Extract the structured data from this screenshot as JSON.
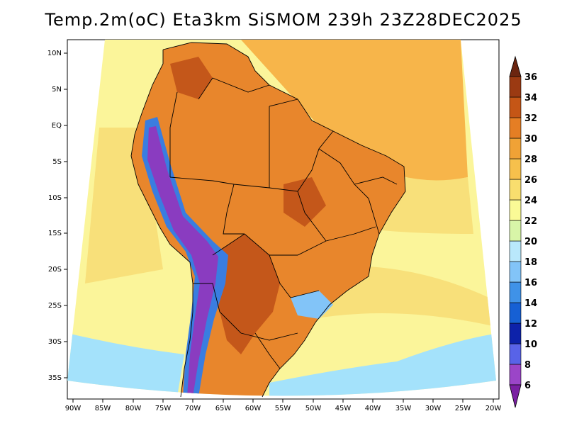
{
  "title": "Temp.2m(oC) Eta3km SiSMOM 239h 23Z28DEC2025",
  "latitude_labels": [
    "10N",
    "5N",
    "EQ",
    "5S",
    "10S",
    "15S",
    "20S",
    "25S",
    "30S",
    "35S"
  ],
  "longitude_labels": [
    "90W",
    "85W",
    "80W",
    "75W",
    "70W",
    "65W",
    "60W",
    "55W",
    "50W",
    "45W",
    "40W",
    "35W",
    "30W",
    "25W",
    "20W"
  ],
  "colorbar": {
    "labels": [
      "6",
      "8",
      "10",
      "12",
      "14",
      "16",
      "18",
      "20",
      "22",
      "24",
      "26",
      "28",
      "30",
      "32",
      "34",
      "36"
    ],
    "colors": [
      "#7a1fa2",
      "#9b45c8",
      "#5863e8",
      "#0d22aa",
      "#1660d4",
      "#3f92e8",
      "#82c4f8",
      "#b9e8fb",
      "#d8f5a8",
      "#fafa96",
      "#f9de6e",
      "#f6c04c",
      "#f0a236",
      "#e57e24",
      "#c55616",
      "#9b3a12",
      "#6b2510"
    ]
  },
  "fields": {
    "ocean_warm": "#f7b54a",
    "ocean_mid": "#f8e07a",
    "ocean_cool": "#fbf59a",
    "ocean_cold": "#a4e2fb",
    "land_hot": "#e8862c",
    "land_very_hot": "#c4571a",
    "andes_cold": "#8a3cc0",
    "andes_mid": "#3a7de0"
  }
}
